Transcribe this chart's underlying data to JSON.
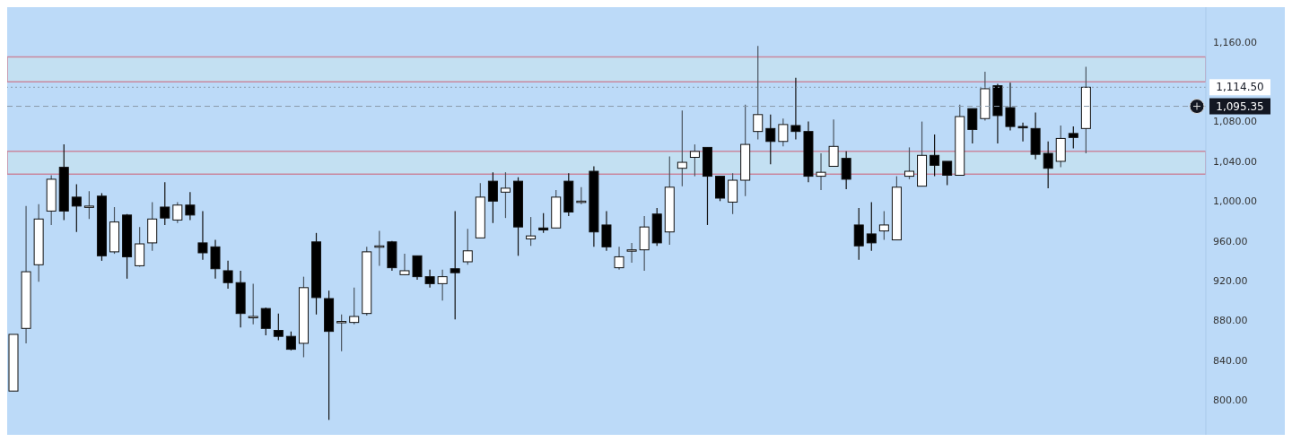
{
  "chart_data": {
    "type": "candlestick",
    "categories": [
      null,
      null,
      null,
      null,
      null,
      null,
      null,
      null,
      null,
      null,
      null,
      null,
      null,
      null,
      null,
      null,
      null,
      null,
      null,
      null,
      null,
      null,
      null,
      null,
      null,
      null,
      null,
      null,
      null,
      null,
      null,
      null,
      null,
      null,
      null,
      null,
      null,
      null,
      null,
      null,
      null,
      null,
      null,
      null,
      null,
      null,
      null,
      null,
      null,
      null,
      null,
      null,
      null,
      null,
      null,
      null,
      null,
      null,
      null,
      null,
      null,
      null,
      null,
      null,
      null,
      null,
      null,
      null,
      null,
      null,
      null,
      null,
      null,
      null,
      null,
      null,
      null,
      null,
      null,
      null,
      null,
      null,
      null,
      null,
      null,
      null,
      null,
      null,
      null,
      null,
      null,
      null,
      null,
      null,
      null
    ],
    "ohlc": [
      [
        809,
        866,
        809,
        866
      ],
      [
        872,
        995,
        857,
        929
      ],
      [
        936,
        997,
        919,
        982
      ],
      [
        990,
        1026,
        976,
        1022
      ],
      [
        1034,
        1057,
        981,
        990
      ],
      [
        1004,
        1017,
        969,
        995
      ],
      [
        995,
        1010,
        982,
        995
      ],
      [
        1005,
        1008,
        940,
        945
      ],
      [
        949,
        994,
        947,
        979
      ],
      [
        986,
        987,
        922,
        944
      ],
      [
        935,
        974,
        934,
        957
      ],
      [
        958,
        999,
        950,
        982
      ],
      [
        994,
        1019,
        976,
        983
      ],
      [
        981,
        999,
        978,
        996
      ],
      [
        996,
        1009,
        981,
        986
      ],
      [
        958,
        990,
        941,
        948
      ],
      [
        954,
        961,
        922,
        932
      ],
      [
        930,
        940,
        912,
        918
      ],
      [
        918,
        930,
        873,
        887
      ],
      [
        884,
        917,
        876,
        884
      ],
      [
        892,
        893,
        865,
        872
      ],
      [
        870,
        887,
        860,
        864
      ],
      [
        864,
        869,
        850,
        851
      ],
      [
        857,
        924,
        843,
        913
      ],
      [
        959,
        968,
        886,
        903
      ],
      [
        902,
        910,
        780,
        869
      ],
      [
        878,
        886,
        849,
        879
      ],
      [
        878,
        913,
        876,
        884
      ],
      [
        887,
        954,
        885,
        949
      ],
      [
        955,
        970,
        935,
        955
      ],
      [
        959,
        960,
        930,
        933
      ],
      [
        926,
        947,
        926,
        930
      ],
      [
        945,
        945,
        921,
        924
      ],
      [
        924,
        931,
        913,
        917
      ],
      [
        917,
        931,
        900,
        924
      ],
      [
        932,
        990,
        881,
        928
      ],
      [
        939,
        972,
        936,
        950
      ],
      [
        963,
        1018,
        963,
        1004
      ],
      [
        1020,
        1029,
        978,
        1000
      ],
      [
        1009,
        1029,
        983,
        1013
      ],
      [
        1020,
        1024,
        945,
        974
      ],
      [
        962,
        984,
        955,
        965
      ],
      [
        973,
        988,
        968,
        971
      ],
      [
        973,
        1011,
        973,
        1004
      ],
      [
        1020,
        1028,
        985,
        989
      ],
      [
        999,
        1014,
        997,
        1000
      ],
      [
        1030,
        1035,
        954,
        969
      ],
      [
        976,
        990,
        950,
        954
      ],
      [
        933,
        954,
        931,
        944
      ],
      [
        950,
        958,
        938,
        951
      ],
      [
        951,
        985,
        930,
        974
      ],
      [
        987,
        993,
        955,
        958
      ],
      [
        969,
        1045,
        956,
        1014
      ],
      [
        1033,
        1091,
        1015,
        1039
      ],
      [
        1044,
        1057,
        1025,
        1050
      ],
      [
        1054,
        1054,
        976,
        1025
      ],
      [
        1025,
        1025,
        1000,
        1003
      ],
      [
        999,
        1028,
        987,
        1021
      ],
      [
        1021,
        1097,
        1005,
        1057
      ],
      [
        1070,
        1156,
        1062,
        1087
      ],
      [
        1073,
        1087,
        1037,
        1060
      ],
      [
        1060,
        1083,
        1055,
        1077
      ],
      [
        1076,
        1124,
        1062,
        1070
      ],
      [
        1070,
        1080,
        1019,
        1025
      ],
      [
        1025,
        1048,
        1011,
        1029
      ],
      [
        1035,
        1082,
        1035,
        1055
      ],
      [
        1043,
        1050,
        1012,
        1022
      ],
      [
        976,
        993,
        941,
        955
      ],
      [
        967,
        999,
        950,
        958
      ],
      [
        970,
        990,
        961,
        976
      ],
      [
        961,
        1025,
        961,
        1014
      ],
      [
        1025,
        1054,
        1022,
        1030
      ],
      [
        1015,
        1080,
        1015,
        1046
      ],
      [
        1046,
        1067,
        1025,
        1036
      ],
      [
        1040,
        1040,
        1016,
        1026
      ],
      [
        1026,
        1097,
        1026,
        1085
      ],
      [
        1093,
        1093,
        1058,
        1072
      ],
      [
        1083,
        1130,
        1081,
        1113
      ],
      [
        1116,
        1118,
        1058,
        1086
      ],
      [
        1094,
        1119,
        1071,
        1075
      ],
      [
        1075,
        1079,
        1060,
        1074
      ],
      [
        1073,
        1089,
        1042,
        1047
      ],
      [
        1048,
        1060,
        1013,
        1033
      ],
      [
        1040,
        1076,
        1034,
        1063
      ],
      [
        1068,
        1075,
        1053,
        1064
      ],
      [
        1073,
        1135,
        1048,
        1114.5
      ],
      null,
      null,
      null,
      null,
      null,
      null,
      null,
      null,
      null
    ],
    "ylim": [
      765,
      1195
    ],
    "yticks": [
      {
        "value": 800,
        "label": "800.00"
      },
      {
        "value": 840,
        "label": "840.00"
      },
      {
        "value": 880,
        "label": "880.00"
      },
      {
        "value": 920,
        "label": "920.00"
      },
      {
        "value": 960,
        "label": "960.00"
      },
      {
        "value": 1000,
        "label": "1,000.00"
      },
      {
        "value": 1040,
        "label": "1,040.00"
      },
      {
        "value": 1080,
        "label": "1,080.00"
      },
      {
        "value": 1160,
        "label": "1,160.00"
      }
    ],
    "bands": [
      {
        "axis": "y",
        "from": 1027,
        "to": 1050,
        "color": "#c3e0f2"
      },
      {
        "axis": "y",
        "from": 1120,
        "to": 1145,
        "color": "#c3e0f2"
      }
    ],
    "ref_lines": [
      {
        "axis": "y",
        "value": 1114.5,
        "label": "1,114.50",
        "line_style": "dotted"
      },
      {
        "axis": "y",
        "value": 1095.35,
        "label": "1,095.35",
        "line_style": "dashed"
      }
    ],
    "tick_labels": "y"
  }
}
